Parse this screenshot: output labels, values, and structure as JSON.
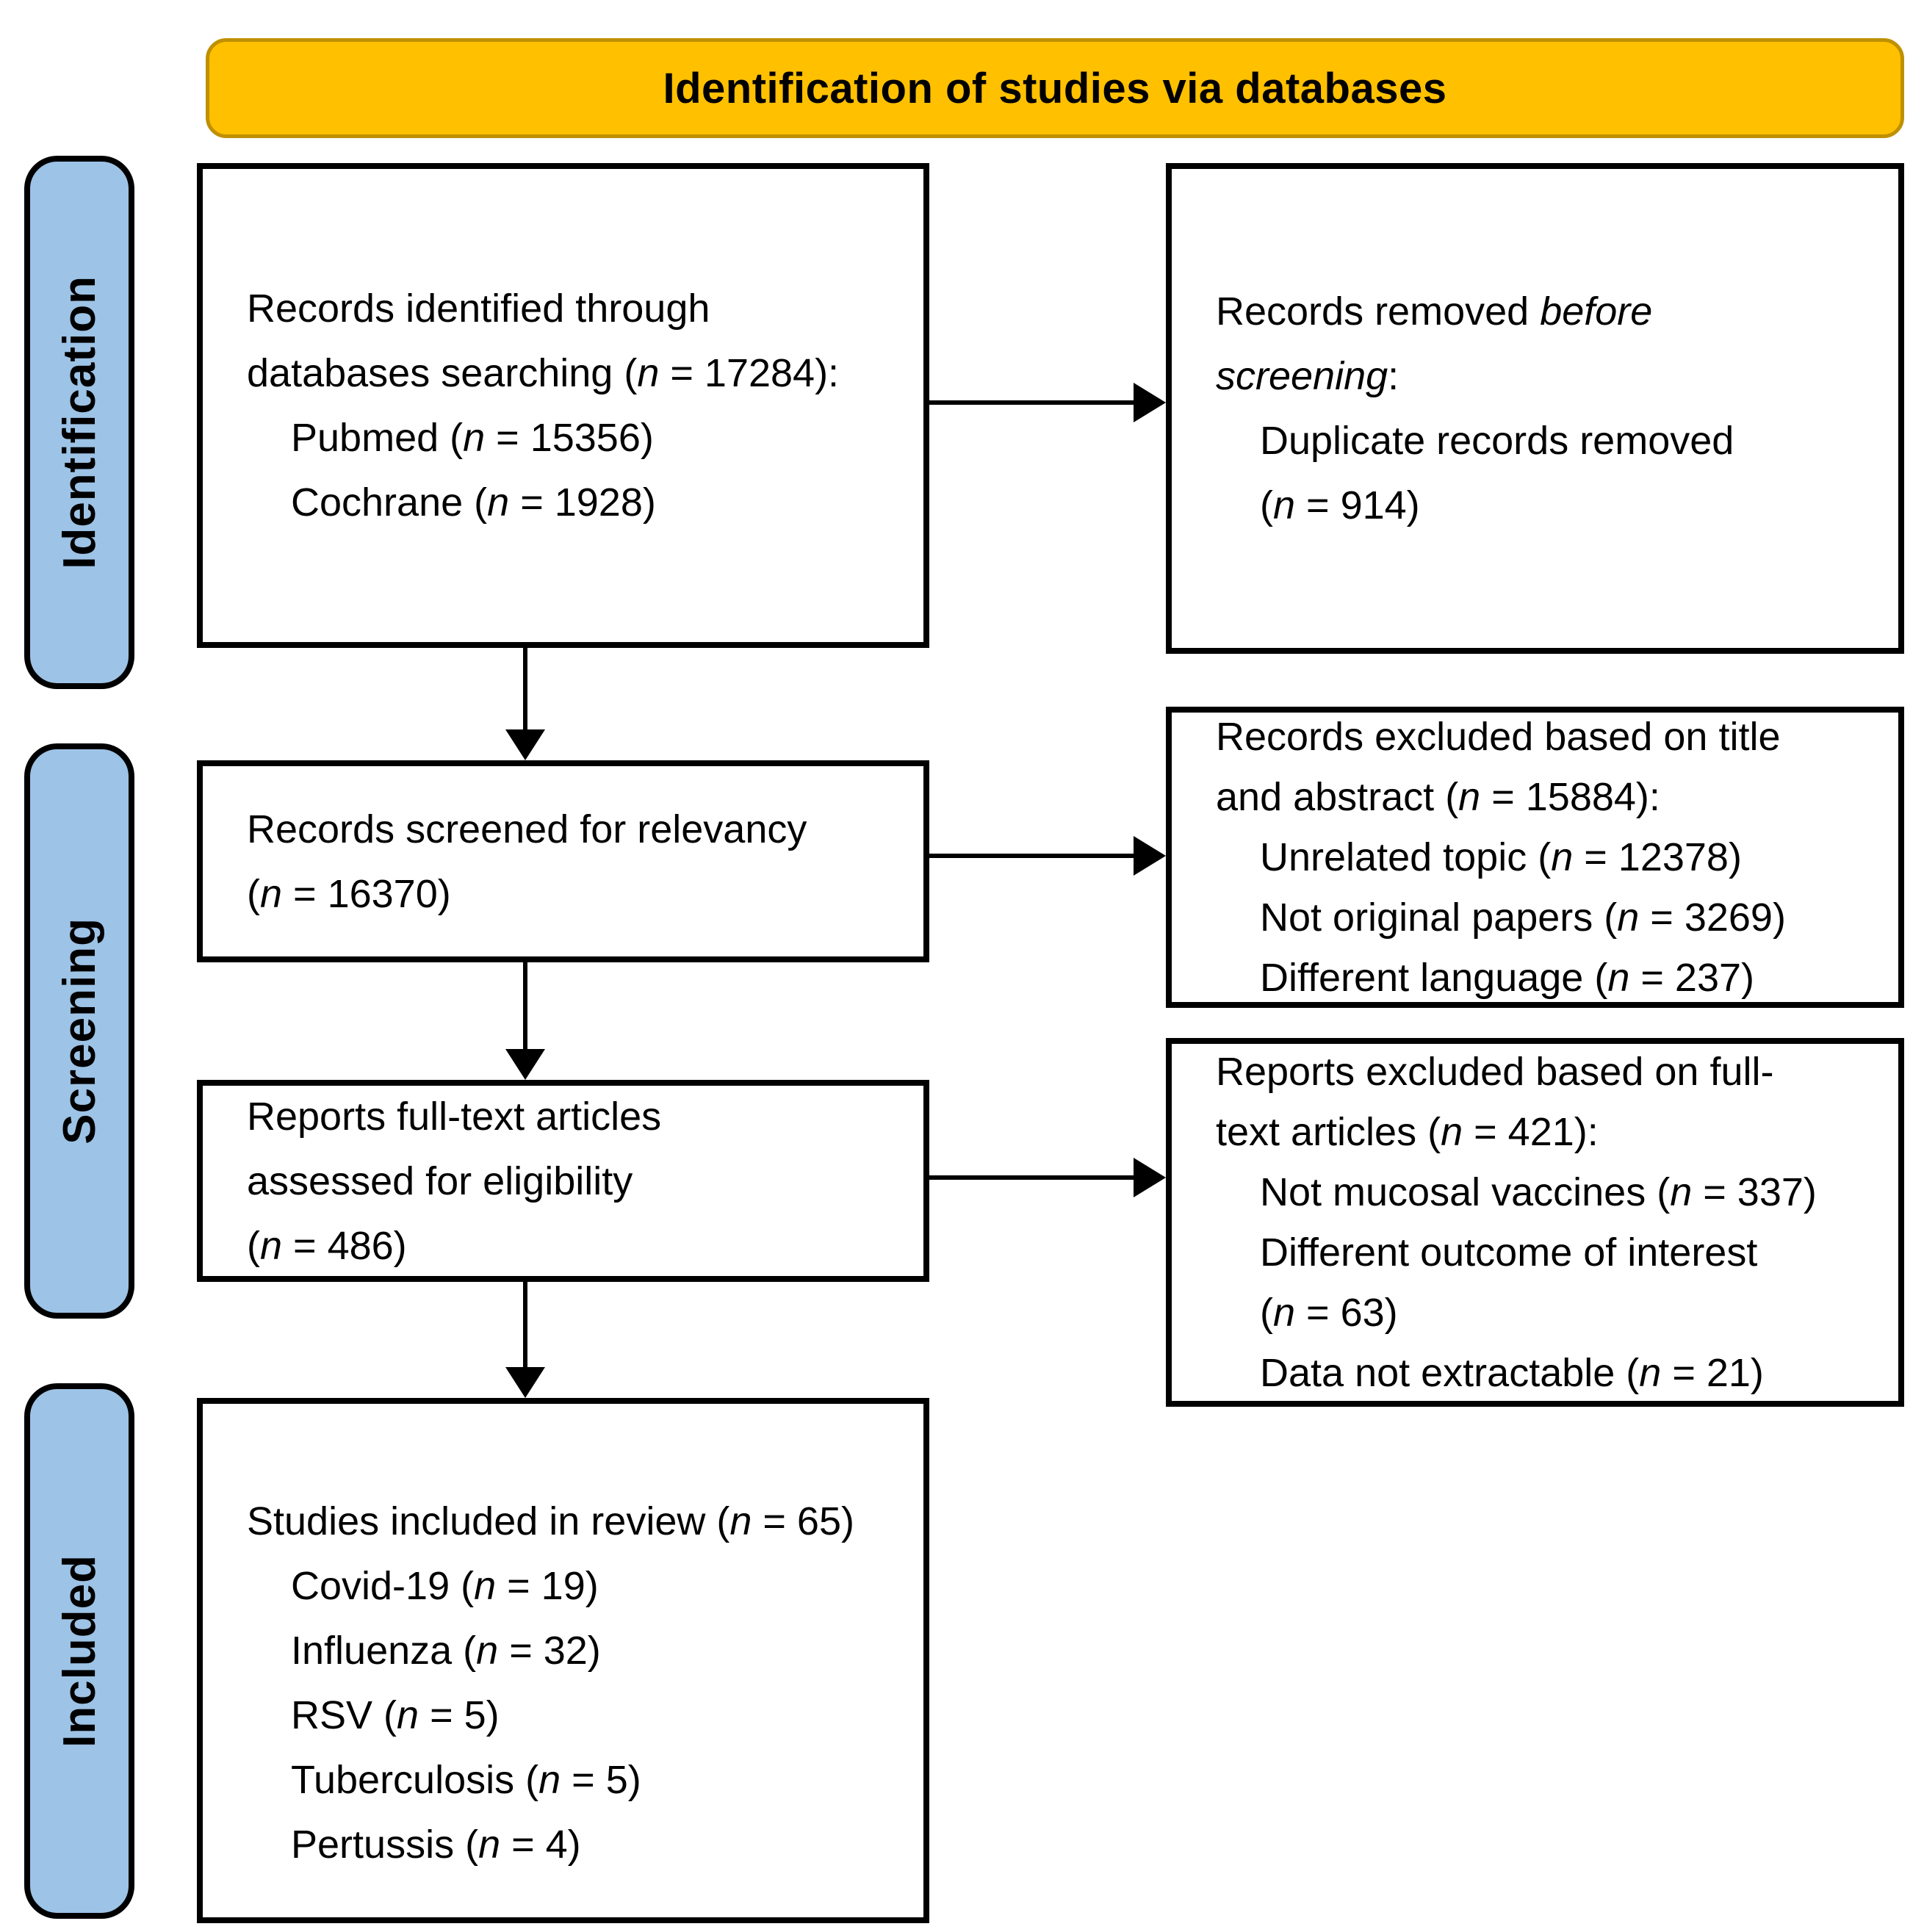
{
  "title": "Identification of studies via databases",
  "stages": {
    "identification": "Identification",
    "screening": "Screening",
    "included": "Included"
  },
  "boxes": {
    "records_identified": {
      "lines": [
        "Records identified through",
        "databases searching (*n* = 17284):",
        "Pubmed (*n* = 15356)",
        "Cochrane (*n* = 1928)"
      ]
    },
    "records_removed": {
      "lines": [
        "Records removed *before*",
        "*screening*:",
        "Duplicate records removed",
        "(*n* = 914)"
      ]
    },
    "records_screened": {
      "lines": [
        "Records screened for relevancy",
        "(*n* = 16370)"
      ]
    },
    "records_excluded_title_abstract": {
      "lines": [
        "Records excluded based on title",
        "and abstract (*n* = 15884):",
        "Unrelated topic (*n* = 12378)",
        "Not original papers (*n* = 3269)",
        "Different language (*n* = 237)"
      ]
    },
    "reports_assessed": {
      "lines": [
        "Reports full-text articles",
        "assessed for eligibility",
        "(*n* = 486)"
      ]
    },
    "reports_excluded_fulltext": {
      "lines": [
        "Reports excluded based on full-",
        "text articles (*n* = 421):",
        "Not mucosal vaccines (*n* = 337)",
        "Different outcome of interest",
        "(*n* = 63)",
        "Data not extractable (*n* = 21)"
      ]
    },
    "studies_included": {
      "lines": [
        "Studies included in review (*n* = 65)",
        "Covid-19 (*n* = 19)",
        "Influenza (*n* = 32)",
        "RSV (*n* = 5)",
        "Tuberculosis (*n* = 5)",
        "Pertussis (*n* = 4)"
      ]
    }
  },
  "colors": {
    "header_fill": "#FFC000",
    "header_border": "#BF9000",
    "stage_fill": "#9DC3E6",
    "box_border": "#000000",
    "arrow": "#000000"
  }
}
